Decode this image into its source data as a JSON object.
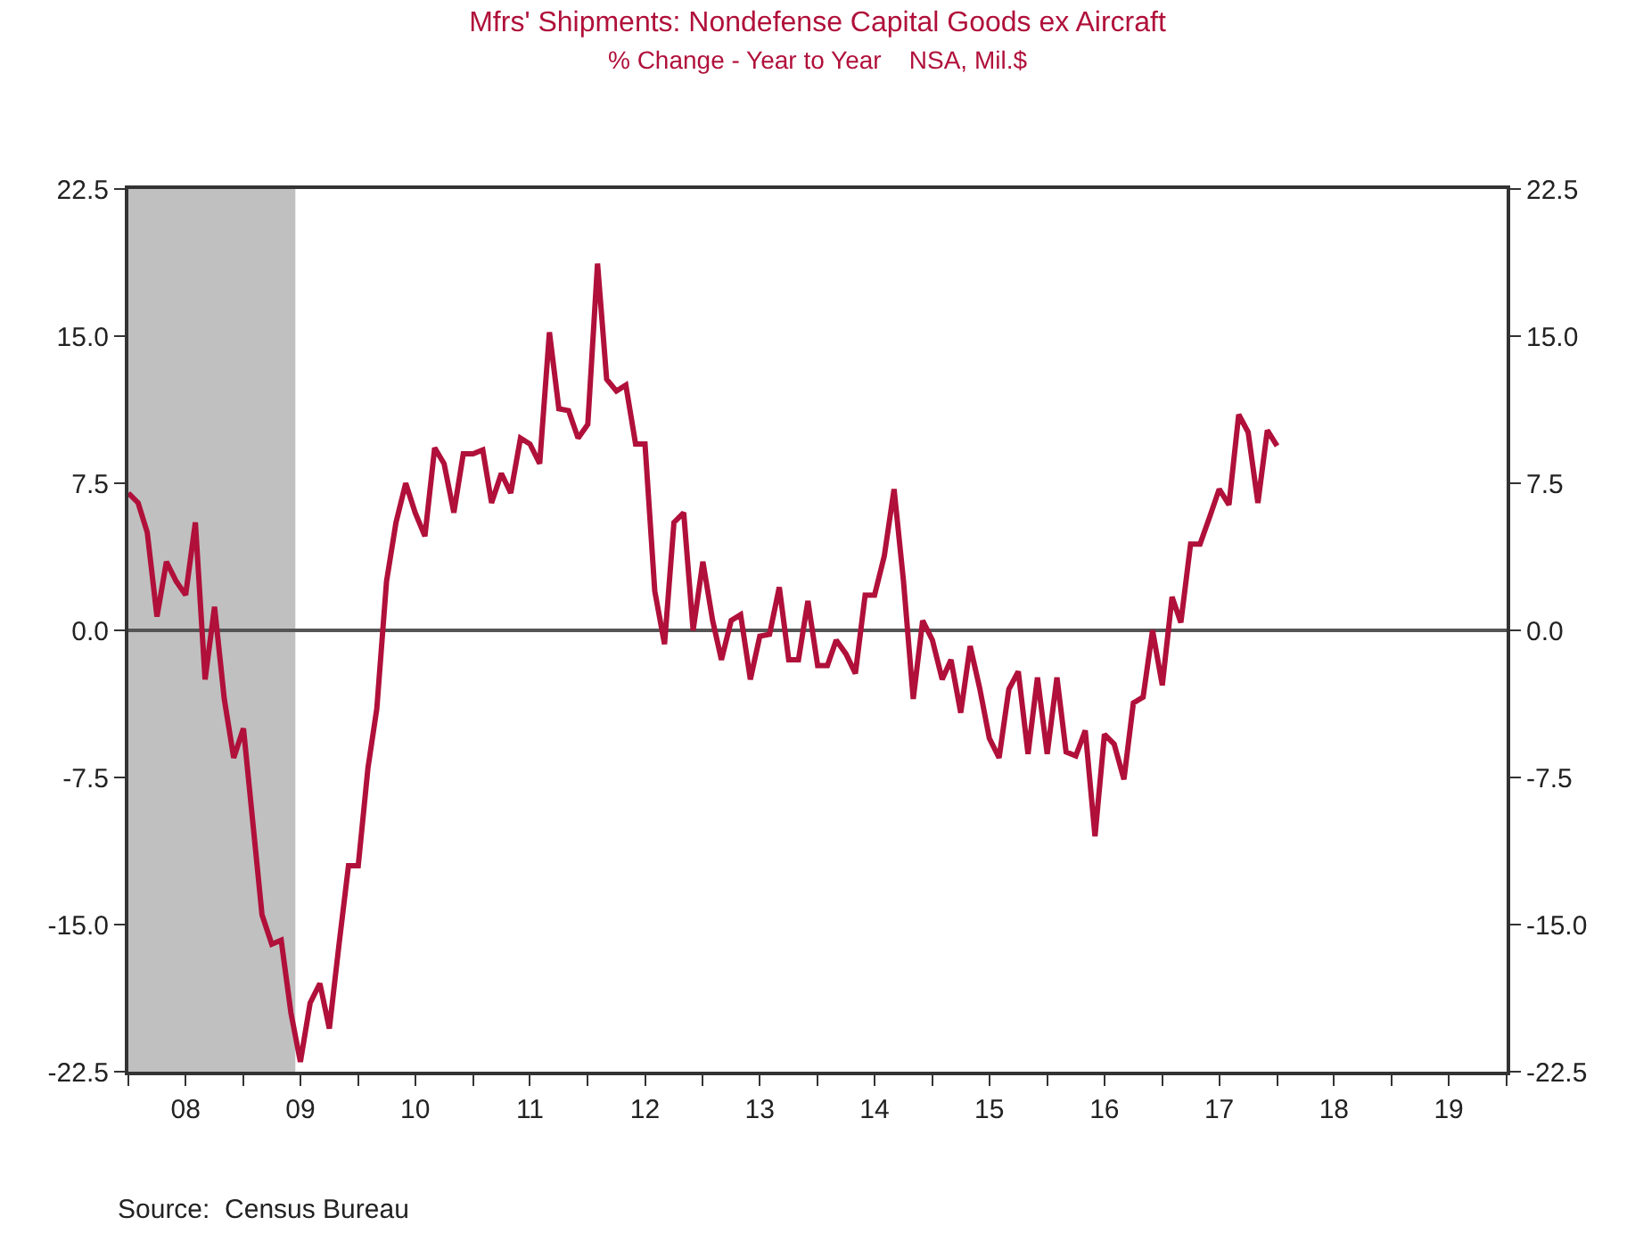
{
  "chart_data": {
    "type": "line",
    "title": "Mfrs' Shipments: Nondefense Capital Goods ex Aircraft",
    "subtitle": "% Change - Year to Year    NSA, Mil.$",
    "annotations": [
      "Source:  Census Bureau"
    ],
    "series": [
      {
        "color": "#b0103a",
        "x": [
          "2008-01",
          "2008-02",
          "2008-03",
          "2008-04",
          "2008-05",
          "2008-06",
          "2008-07",
          "2008-08",
          "2008-09",
          "2008-10",
          "2008-11",
          "2008-12",
          "2009-01",
          "2009-02",
          "2009-03",
          "2009-04",
          "2009-05",
          "2009-06",
          "2009-07",
          "2009-08",
          "2009-09",
          "2009-10",
          "2009-11",
          "2009-12",
          "2010-01",
          "2010-02",
          "2010-03",
          "2010-04",
          "2010-05",
          "2010-06",
          "2010-07",
          "2010-08",
          "2010-09",
          "2010-10",
          "2010-11",
          "2010-12",
          "2011-01",
          "2011-02",
          "2011-03",
          "2011-04",
          "2011-05",
          "2011-06",
          "2011-07",
          "2011-08",
          "2011-09",
          "2011-10",
          "2011-11",
          "2011-12",
          "2012-01",
          "2012-02",
          "2012-03",
          "2012-04",
          "2012-05",
          "2012-06",
          "2012-07",
          "2012-08",
          "2012-09",
          "2012-10",
          "2012-11",
          "2012-12",
          "2013-01",
          "2013-02",
          "2013-03",
          "2013-04",
          "2013-05",
          "2013-06",
          "2013-07",
          "2013-08",
          "2013-09",
          "2013-10",
          "2013-11",
          "2013-12",
          "2014-01",
          "2014-02",
          "2014-03",
          "2014-04",
          "2014-05",
          "2014-06",
          "2014-07",
          "2014-08",
          "2014-09",
          "2014-10",
          "2014-11",
          "2014-12",
          "2015-01",
          "2015-02",
          "2015-03",
          "2015-04",
          "2015-05",
          "2015-06",
          "2015-07",
          "2015-08",
          "2015-09",
          "2015-10",
          "2015-11",
          "2015-12",
          "2016-01",
          "2016-02",
          "2016-03",
          "2016-04",
          "2016-05",
          "2016-06",
          "2016-07",
          "2016-08",
          "2016-09",
          "2016-10",
          "2016-11",
          "2016-12",
          "2017-01",
          "2017-02",
          "2017-03",
          "2017-04",
          "2017-05",
          "2017-06",
          "2017-07",
          "2017-08",
          "2017-09",
          "2017-10",
          "2017-11",
          "2017-12",
          "2018-01"
        ],
        "values": [
          7.0,
          6.5,
          5.0,
          0.7,
          3.5,
          2.5,
          1.8,
          5.5,
          -2.5,
          1.2,
          -3.5,
          -6.5,
          -5.0,
          -10.0,
          -14.5,
          -16.0,
          -15.8,
          -19.5,
          -22.0,
          -19.0,
          -18.0,
          -20.3,
          -16.0,
          -12.0,
          -12.0,
          -7.0,
          -4.0,
          2.5,
          5.5,
          7.5,
          6.0,
          4.8,
          9.3,
          8.5,
          6.0,
          9.0,
          9.0,
          9.2,
          6.5,
          8.0,
          7.0,
          9.8,
          9.5,
          8.5,
          15.2,
          11.3,
          11.2,
          9.8,
          10.5,
          18.7,
          12.8,
          12.2,
          12.5,
          9.5,
          9.5,
          2.0,
          -0.7,
          5.5,
          6.0,
          0.0,
          3.5,
          0.5,
          -1.5,
          0.5,
          0.8,
          -2.5,
          -0.3,
          -0.2,
          2.2,
          -1.5,
          -1.5,
          1.5,
          -1.8,
          -1.8,
          -0.5,
          -1.2,
          -2.2,
          1.8,
          1.8,
          3.8,
          7.2,
          2.5,
          -3.5,
          0.5,
          -0.5,
          -2.5,
          -1.5,
          -4.2,
          -0.8,
          -3.0,
          -5.5,
          -6.5,
          -3.0,
          -2.1,
          -6.3,
          -2.4,
          -6.3,
          -2.4,
          -6.2,
          -6.4,
          -5.1,
          -10.5,
          -5.3,
          -5.8,
          -7.6,
          -3.7,
          -3.4,
          0.0,
          -2.8,
          1.7,
          0.4,
          4.4,
          4.4,
          5.8,
          7.2,
          6.4,
          11.0,
          10.1,
          6.5,
          10.2,
          9.4
        ]
      }
    ],
    "xlim": [
      "2008-01-01",
      "2020-01-01"
    ],
    "xticks": [
      {
        "value": "2008-01-01",
        "label": null
      },
      {
        "value": "2008-07-01",
        "label": "08"
      },
      {
        "value": "2009-01-01",
        "label": null
      },
      {
        "value": "2009-07-01",
        "label": "09"
      },
      {
        "value": "2010-01-01",
        "label": null
      },
      {
        "value": "2010-07-01",
        "label": "10"
      },
      {
        "value": "2011-01-01",
        "label": null
      },
      {
        "value": "2011-07-01",
        "label": "11"
      },
      {
        "value": "2012-01-01",
        "label": null
      },
      {
        "value": "2012-07-01",
        "label": "12"
      },
      {
        "value": "2013-01-01",
        "label": null
      },
      {
        "value": "2013-07-01",
        "label": "13"
      },
      {
        "value": "2014-01-01",
        "label": null
      },
      {
        "value": "2014-07-01",
        "label": "14"
      },
      {
        "value": "2015-01-01",
        "label": null
      },
      {
        "value": "2015-07-01",
        "label": "15"
      },
      {
        "value": "2016-01-01",
        "label": null
      },
      {
        "value": "2016-07-01",
        "label": "16"
      },
      {
        "value": "2017-01-01",
        "label": null
      },
      {
        "value": "2017-07-01",
        "label": "17"
      },
      {
        "value": "2018-01-01",
        "label": null
      },
      {
        "value": "2018-07-01",
        "label": "18"
      },
      {
        "value": "2019-01-01",
        "label": null
      },
      {
        "value": "2019-07-01",
        "label": "19"
      },
      {
        "value": "2020-01-01",
        "label": null
      }
    ],
    "ylim": [
      -22.5,
      22.5
    ],
    "yticks": [
      {
        "value": -22.5,
        "label": "-22.5"
      },
      {
        "value": -15,
        "label": "-15.0"
      },
      {
        "value": -7.5,
        "label": "-7.5"
      },
      {
        "value": 0,
        "label": "0.0"
      },
      {
        "value": 7.5,
        "label": "7.5"
      },
      {
        "value": 15,
        "label": "15.0"
      },
      {
        "value": 22.5,
        "label": "22.5"
      }
    ],
    "y2lim": [
      -22.5,
      22.5
    ],
    "y2ticks": [
      {
        "value": -22.5,
        "label": "-22.5"
      },
      {
        "value": -15,
        "label": "-15.0"
      },
      {
        "value": -7.5,
        "label": "-7.5"
      },
      {
        "value": 0,
        "label": "0.0"
      },
      {
        "value": 7.5,
        "label": "7.5"
      },
      {
        "value": 15,
        "label": "15.0"
      },
      {
        "value": 22.5,
        "label": "22.5"
      }
    ],
    "ref_lines": [
      {
        "axis": "y",
        "value": 0,
        "color": "#555555"
      }
    ],
    "bands": [
      {
        "axis": "x",
        "from": "2008-01-01",
        "to": "2009-06-15",
        "color": "#c0c0c0"
      }
    ],
    "line_style": "solid"
  }
}
